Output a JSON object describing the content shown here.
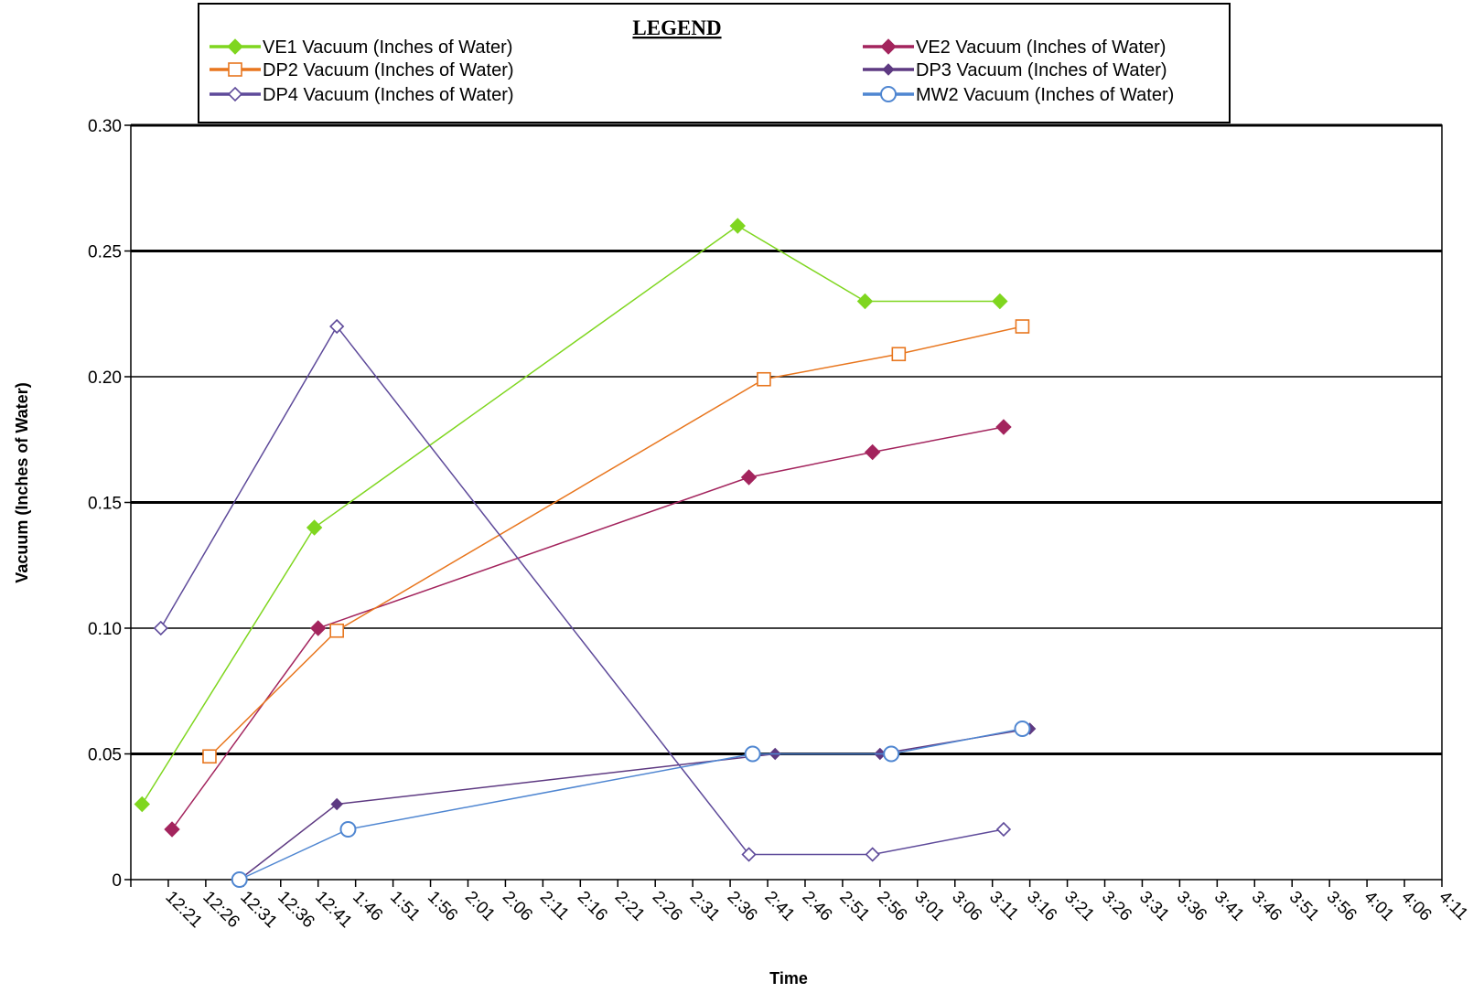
{
  "chart_data": {
    "type": "line",
    "title": "",
    "xlabel": "Time",
    "ylabel": "Vacuum (Inches of Water)",
    "ylim": [
      0,
      0.3
    ],
    "y_ticks": [
      "0",
      "0.05",
      "0.10",
      "0.15",
      "0.20",
      "0.25",
      "0.30"
    ],
    "x_ticks": [
      "12:21",
      "12:26",
      "12:31",
      "12:36",
      "12:41",
      "1:46",
      "1:51",
      "1:56",
      "2:01",
      "2:06",
      "2:11",
      "2:16",
      "2:21",
      "2:26",
      "2:31",
      "2:36",
      "2:41",
      "2:46",
      "2:51",
      "2:56",
      "3:01",
      "3:06",
      "3:11",
      "3:16",
      "3:21",
      "3:26",
      "3:31",
      "3:36",
      "3:41",
      "3:46",
      "3:51",
      "3:56",
      "4:01",
      "4:06",
      "4:11"
    ],
    "grid": true,
    "legend": {
      "title": "LEGEND",
      "position": "top",
      "entries": [
        "VE1 Vacuum (Inches of Water)",
        "VE2 Vacuum (Inches of Water)",
        "DP2 Vacuum (Inches of Water)",
        "DP3 Vacuum (Inches of Water)",
        "DP4 Vacuum (Inches of Water)",
        "MW2 Vacuum (Inches of Water)"
      ]
    },
    "series": [
      {
        "name": "VE1 Vacuum (Inches of Water)",
        "color": "#7fd61f",
        "marker": "diamond-filled",
        "points": [
          [
            -0.2,
            0.03
          ],
          [
            4.4,
            0.14
          ],
          [
            15.7,
            0.26
          ],
          [
            19.1,
            0.23
          ],
          [
            22.7,
            0.23
          ]
        ]
      },
      {
        "name": "VE2 Vacuum (Inches of Water)",
        "color": "#a3245d",
        "marker": "diamond-filled",
        "points": [
          [
            0.6,
            0.02
          ],
          [
            4.5,
            0.1
          ],
          [
            16.0,
            0.16
          ],
          [
            19.3,
            0.17
          ],
          [
            22.8,
            0.18
          ]
        ]
      },
      {
        "name": "DP2 Vacuum (Inches of Water)",
        "color": "#e8761e",
        "marker": "square-open",
        "points": [
          [
            1.6,
            0.049
          ],
          [
            5.0,
            0.099
          ],
          [
            16.4,
            0.199
          ],
          [
            20.0,
            0.209
          ],
          [
            23.3,
            0.22
          ]
        ]
      },
      {
        "name": "DP3 Vacuum (Inches of Water)",
        "color": "#5e3a82",
        "marker": "diamond-filled-small",
        "points": [
          [
            2.4,
            0.0
          ],
          [
            5.0,
            0.03
          ],
          [
            16.7,
            0.05
          ],
          [
            19.5,
            0.05
          ],
          [
            23.5,
            0.06
          ]
        ]
      },
      {
        "name": "DP4 Vacuum (Inches of Water)",
        "color": "#5e4a9a",
        "marker": "diamond-open",
        "points": [
          [
            0.3,
            0.1
          ],
          [
            5.0,
            0.22
          ],
          [
            16.0,
            0.01
          ],
          [
            19.3,
            0.01
          ],
          [
            22.8,
            0.02
          ]
        ]
      },
      {
        "name": "MW2 Vacuum (Inches of Water)",
        "color": "#4f86d1",
        "marker": "circle-open",
        "points": [
          [
            2.4,
            0.0
          ],
          [
            5.3,
            0.02
          ],
          [
            16.1,
            0.05
          ],
          [
            19.8,
            0.05
          ],
          [
            23.3,
            0.06
          ]
        ]
      }
    ]
  }
}
